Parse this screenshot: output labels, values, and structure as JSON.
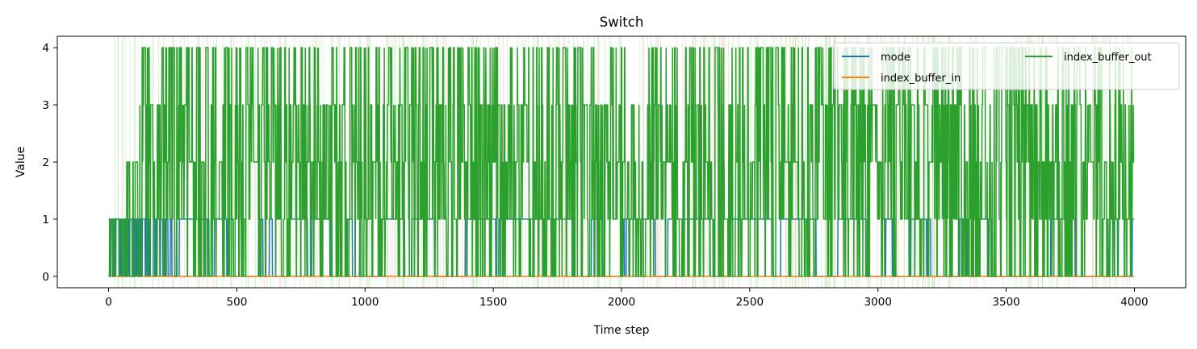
{
  "chart_data": {
    "type": "line",
    "title": "Switch",
    "xlabel": "Time step",
    "ylabel": "Value",
    "xlim": [
      -200,
      4200
    ],
    "ylim": [
      -0.2,
      4.2
    ],
    "xticks": [
      0,
      500,
      1000,
      1500,
      2000,
      2500,
      3000,
      3500,
      4000
    ],
    "yticks": [
      0,
      1,
      2,
      3,
      4
    ],
    "legend_position": "top-right",
    "legend_columns": 2,
    "grid": false,
    "background_vlines": {
      "colors": [
        "#ff9896",
        "#98df8a"
      ],
      "description_count": 320
    },
    "series": [
      {
        "name": "mode",
        "color": "#1f77b4",
        "n_points": 4000,
        "levels": [
          0,
          1
        ],
        "dense_until": 270,
        "switch_rate": 0.03
      },
      {
        "name": "index_buffer_in",
        "color": "#ff7f0e",
        "n_points": 4000,
        "levels": [
          0
        ],
        "dense_until": 0,
        "switch_rate": 0.0
      },
      {
        "name": "index_buffer_out",
        "color": "#2ca02c",
        "n_points": 4000,
        "levels": [
          0,
          1,
          2,
          3,
          4
        ],
        "segments": [
          {
            "x_start": 0,
            "x_end": 50,
            "max_level": 1
          },
          {
            "x_start": 50,
            "x_end": 75,
            "max_level": 2
          },
          {
            "x_start": 75,
            "x_end": 120,
            "max_level": 3
          },
          {
            "x_start": 120,
            "x_end": 4000,
            "max_level": 4
          }
        ],
        "switch_rate": 0.45
      }
    ]
  }
}
